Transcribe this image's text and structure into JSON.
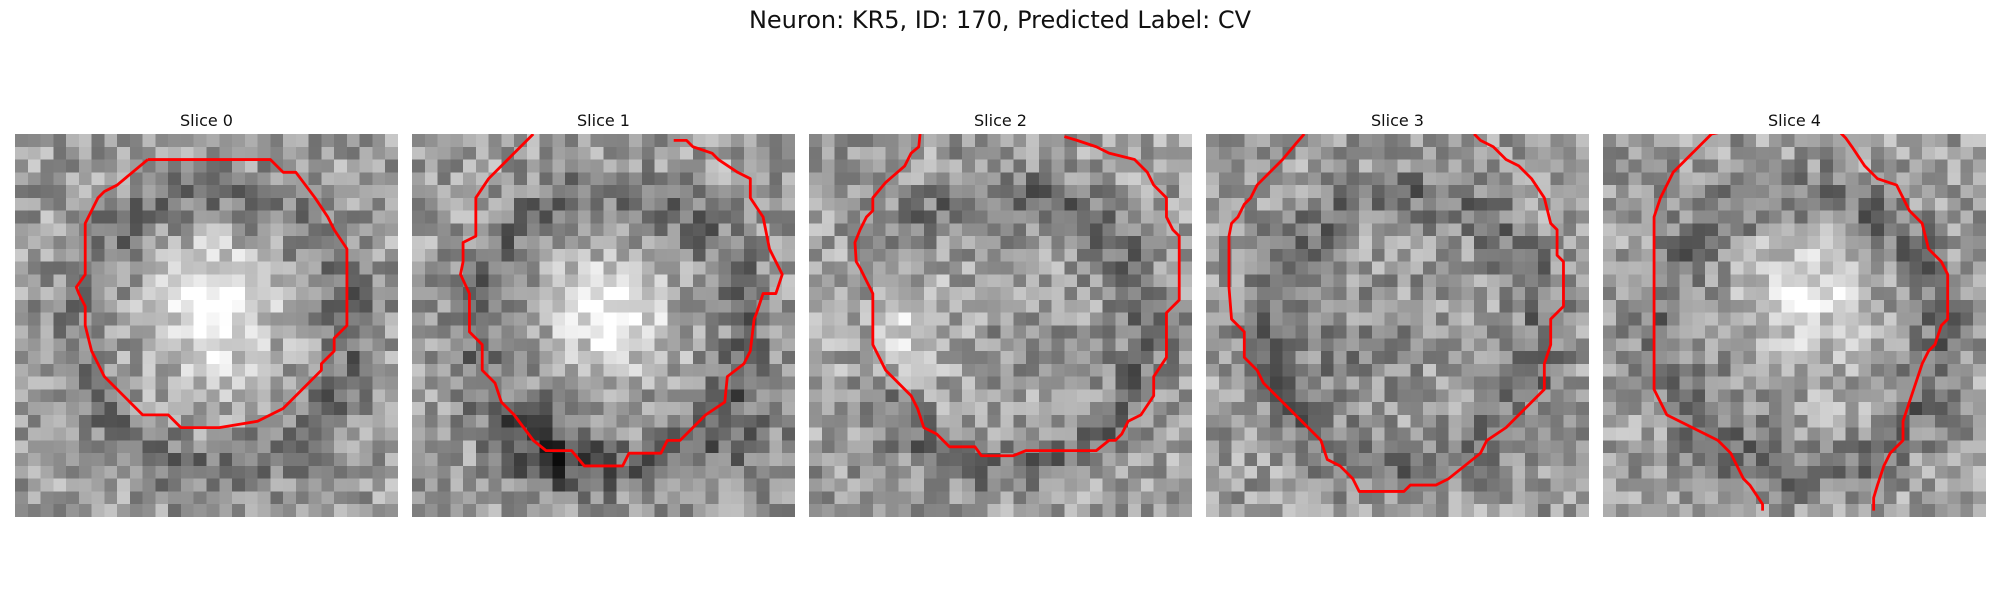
{
  "figure": {
    "title": "Neuron: KR5, ID: 170, Predicted Label: CV"
  },
  "style": {
    "contour_color": "#ff0000",
    "image_colormap": "grayscale"
  },
  "slices": [
    {
      "title": "Slice 0",
      "grid_size": 30,
      "seed": 11,
      "base": [
        [
          0.5,
          0.5,
          0.5
        ],
        [
          0.7,
          0.5,
          0.5
        ],
        [
          0.8,
          0.5,
          0.4
        ],
        [
          0.5,
          0.5,
          0.8
        ]
      ],
      "contour": [
        [
          10.4,
          2.0
        ],
        [
          20.0,
          2.0
        ],
        [
          21.0,
          3.0
        ],
        [
          22.0,
          3.0
        ],
        [
          23.5,
          5.0
        ],
        [
          24.5,
          6.5
        ],
        [
          25.0,
          7.5
        ],
        [
          26.0,
          9.0
        ],
        [
          26.0,
          15.0
        ],
        [
          25.0,
          16.0
        ],
        [
          25.0,
          17.0
        ],
        [
          24.0,
          18.0
        ],
        [
          24.0,
          18.5
        ],
        [
          23.0,
          19.5
        ],
        [
          22.0,
          20.5
        ],
        [
          21.0,
          21.5
        ],
        [
          20.0,
          22.0
        ],
        [
          19.0,
          22.5
        ],
        [
          16.0,
          23.0
        ],
        [
          13.0,
          23.0
        ],
        [
          12.0,
          22.0
        ],
        [
          10.0,
          22.0
        ],
        [
          9.0,
          21.0
        ],
        [
          7.0,
          19.0
        ],
        [
          6.0,
          17.0
        ],
        [
          5.5,
          15.0
        ],
        [
          5.5,
          13.5
        ],
        [
          5.0,
          12.5
        ],
        [
          4.8,
          12.0
        ],
        [
          5.5,
          11.0
        ],
        [
          5.5,
          7.0
        ],
        [
          6.5,
          5.0
        ],
        [
          7.0,
          4.5
        ],
        [
          8.0,
          4.0
        ],
        [
          10.4,
          2.0
        ]
      ]
    },
    {
      "title": "Slice 1",
      "grid_size": 30,
      "seed": 23,
      "base": [
        [
          0.5,
          0.5,
          0.5
        ],
        [
          0.9,
          0.5,
          0.45
        ],
        [
          0.25,
          0.35,
          0.8
        ],
        [
          0.35,
          0.85,
          0.8
        ]
      ],
      "contour": [
        [
          9.5,
          0.0
        ],
        [
          8.5,
          1.0
        ],
        [
          7.5,
          2.0
        ],
        [
          6.0,
          3.5
        ],
        [
          5.0,
          5.0
        ],
        [
          5.0,
          8.0
        ],
        [
          4.0,
          8.5
        ],
        [
          4.0,
          10.0
        ],
        [
          3.8,
          11.0
        ],
        [
          4.5,
          12.5
        ],
        [
          4.5,
          15.5
        ],
        [
          5.5,
          16.5
        ],
        [
          5.5,
          18.5
        ],
        [
          6.5,
          19.5
        ],
        [
          7.0,
          21.0
        ],
        [
          8.0,
          22.0
        ],
        [
          9.5,
          24.0
        ],
        [
          10.5,
          24.8
        ],
        [
          12.5,
          24.8
        ],
        [
          13.5,
          26.0
        ],
        [
          16.5,
          26.0
        ],
        [
          17.0,
          25.0
        ],
        [
          19.5,
          25.0
        ],
        [
          20.0,
          24.0
        ],
        [
          21.0,
          24.0
        ],
        [
          22.0,
          23.0
        ],
        [
          23.0,
          22.0
        ],
        [
          24.5,
          21.0
        ],
        [
          24.7,
          19.0
        ],
        [
          26.0,
          18.0
        ],
        [
          26.5,
          17.0
        ],
        [
          26.8,
          14.5
        ],
        [
          27.0,
          14.0
        ],
        [
          27.5,
          12.5
        ],
        [
          28.5,
          12.5
        ],
        [
          29.0,
          11.0
        ],
        [
          28.5,
          10.0
        ],
        [
          28.0,
          9.0
        ],
        [
          27.5,
          6.5
        ],
        [
          26.5,
          5.0
        ],
        [
          26.5,
          3.5
        ],
        [
          25.5,
          3.0
        ],
        [
          24.0,
          2.0
        ],
        [
          23.5,
          1.5
        ],
        [
          22.0,
          1.0
        ],
        [
          21.5,
          0.5
        ],
        [
          20.5,
          0.5
        ]
      ]
    },
    {
      "title": "Slice 2",
      "grid_size": 30,
      "seed": 37,
      "base": [
        [
          0.5,
          0.5,
          0.55
        ],
        [
          0.45,
          0.55,
          0.5
        ],
        [
          0.5,
          0.75,
          0.6
        ],
        [
          0.8,
          0.2,
          0.5
        ]
      ],
      "contour": [
        [
          8.7,
          0.0
        ],
        [
          8.6,
          1.0
        ],
        [
          8.0,
          1.5
        ],
        [
          7.5,
          2.5
        ],
        [
          6.0,
          3.8
        ],
        [
          5.0,
          5.0
        ],
        [
          5.0,
          6.0
        ],
        [
          4.5,
          6.5
        ],
        [
          4.0,
          7.5
        ],
        [
          3.6,
          8.5
        ],
        [
          3.7,
          10.0
        ],
        [
          4.0,
          10.5
        ],
        [
          4.5,
          11.5
        ],
        [
          5.0,
          12.5
        ],
        [
          5.0,
          16.5
        ],
        [
          5.5,
          17.5
        ],
        [
          6.0,
          18.5
        ],
        [
          7.0,
          19.5
        ],
        [
          8.0,
          20.5
        ],
        [
          8.5,
          21.5
        ],
        [
          9.0,
          23.0
        ],
        [
          10.0,
          23.5
        ],
        [
          11.0,
          24.5
        ],
        [
          13.0,
          24.5
        ],
        [
          13.5,
          25.2
        ],
        [
          16.0,
          25.2
        ],
        [
          17.0,
          24.8
        ],
        [
          22.5,
          24.8
        ],
        [
          23.5,
          24.0
        ],
        [
          24.0,
          24.0
        ],
        [
          24.5,
          23.5
        ],
        [
          25.0,
          22.5
        ],
        [
          26.0,
          22.0
        ],
        [
          27.0,
          20.5
        ],
        [
          27.0,
          19.0
        ],
        [
          28.0,
          17.5
        ],
        [
          28.0,
          14.0
        ],
        [
          29.0,
          13.0
        ],
        [
          29.0,
          8.0
        ],
        [
          28.5,
          7.5
        ],
        [
          28.0,
          6.5
        ],
        [
          28.0,
          5.0
        ],
        [
          27.0,
          4.0
        ],
        [
          26.5,
          3.0
        ],
        [
          25.5,
          2.0
        ],
        [
          23.5,
          1.5
        ],
        [
          22.5,
          1.0
        ],
        [
          21.0,
          0.5
        ],
        [
          20.0,
          0.2
        ]
      ]
    },
    {
      "title": "Slice 3",
      "grid_size": 30,
      "seed": 53,
      "base": [
        [
          0.5,
          0.5,
          0.5
        ],
        [
          0.45,
          0.5,
          0.5
        ],
        [
          0.5,
          0.7,
          0.6
        ],
        [
          0.4,
          0.3,
          0.6
        ]
      ],
      "contour": [
        [
          7.7,
          0.0
        ],
        [
          7.0,
          0.8
        ],
        [
          6.0,
          2.0
        ],
        [
          5.0,
          3.0
        ],
        [
          4.0,
          4.0
        ],
        [
          3.5,
          5.0
        ],
        [
          3.0,
          5.5
        ],
        [
          2.5,
          6.5
        ],
        [
          2.0,
          7.0
        ],
        [
          1.8,
          8.0
        ],
        [
          1.8,
          12.0
        ],
        [
          2.0,
          14.5
        ],
        [
          3.0,
          15.5
        ],
        [
          3.0,
          17.5
        ],
        [
          4.0,
          18.5
        ],
        [
          4.5,
          19.5
        ],
        [
          5.0,
          20.0
        ],
        [
          6.0,
          21.0
        ],
        [
          7.0,
          22.0
        ],
        [
          8.0,
          23.0
        ],
        [
          9.0,
          24.0
        ],
        [
          9.5,
          25.5
        ],
        [
          10.5,
          26.0
        ],
        [
          11.5,
          27.0
        ],
        [
          12.0,
          28.0
        ],
        [
          13.0,
          28.0
        ],
        [
          15.5,
          28.0
        ],
        [
          16.0,
          27.5
        ],
        [
          18.0,
          27.5
        ],
        [
          19.0,
          27.0
        ],
        [
          21.5,
          25.0
        ],
        [
          22.0,
          24.0
        ],
        [
          23.5,
          23.0
        ],
        [
          24.0,
          22.5
        ],
        [
          25.0,
          21.5
        ],
        [
          26.5,
          20.0
        ],
        [
          26.5,
          18.0
        ],
        [
          27.0,
          16.5
        ],
        [
          27.0,
          14.5
        ],
        [
          28.0,
          13.5
        ],
        [
          28.0,
          10.0
        ],
        [
          27.5,
          9.5
        ],
        [
          27.5,
          7.5
        ],
        [
          27.0,
          7.0
        ],
        [
          26.5,
          5.0
        ],
        [
          25.5,
          3.5
        ],
        [
          24.5,
          2.5
        ],
        [
          23.5,
          2.0
        ],
        [
          22.5,
          1.0
        ],
        [
          21.5,
          0.5
        ],
        [
          21.0,
          0.0
        ]
      ]
    },
    {
      "title": "Slice 4",
      "grid_size": 30,
      "seed": 71,
      "base": [
        [
          0.5,
          0.5,
          0.5
        ],
        [
          0.85,
          0.5,
          0.4
        ],
        [
          0.25,
          0.45,
          0.7
        ],
        [
          0.75,
          0.5,
          0.7
        ]
      ],
      "contour": [
        [
          12.5,
          29.5
        ],
        [
          12.5,
          29.0
        ],
        [
          11.5,
          27.5
        ],
        [
          11.0,
          27.0
        ],
        [
          10.0,
          25.0
        ],
        [
          9.0,
          24.0
        ],
        [
          8.0,
          23.5
        ],
        [
          7.0,
          23.0
        ],
        [
          5.0,
          22.0
        ],
        [
          4.5,
          21.0
        ],
        [
          4.0,
          20.0
        ],
        [
          4.0,
          10.0
        ],
        [
          4.0,
          6.5
        ],
        [
          4.5,
          5.0
        ],
        [
          5.5,
          3.0
        ],
        [
          6.5,
          2.0
        ],
        [
          7.5,
          1.0
        ],
        [
          8.5,
          0.0
        ],
        [
          9.5,
          -0.2
        ],
        [
          18.5,
          -0.2
        ],
        [
          19.0,
          0.3
        ],
        [
          19.5,
          1.0
        ],
        [
          20.5,
          2.5
        ],
        [
          21.5,
          3.5
        ],
        [
          23.0,
          4.0
        ],
        [
          24.0,
          6.0
        ],
        [
          25.0,
          7.0
        ],
        [
          25.5,
          9.0
        ],
        [
          26.5,
          10.0
        ],
        [
          27.0,
          11.0
        ],
        [
          27.0,
          14.5
        ],
        [
          26.5,
          15.0
        ],
        [
          26.0,
          16.5
        ],
        [
          25.5,
          17.0
        ],
        [
          25.0,
          18.0
        ],
        [
          24.5,
          19.5
        ],
        [
          24.0,
          21.0
        ],
        [
          23.5,
          22.5
        ],
        [
          23.5,
          24.0
        ],
        [
          22.5,
          25.0
        ],
        [
          22.0,
          26.0
        ],
        [
          21.5,
          27.5
        ],
        [
          21.2,
          28.5
        ],
        [
          21.2,
          29.5
        ]
      ]
    }
  ]
}
